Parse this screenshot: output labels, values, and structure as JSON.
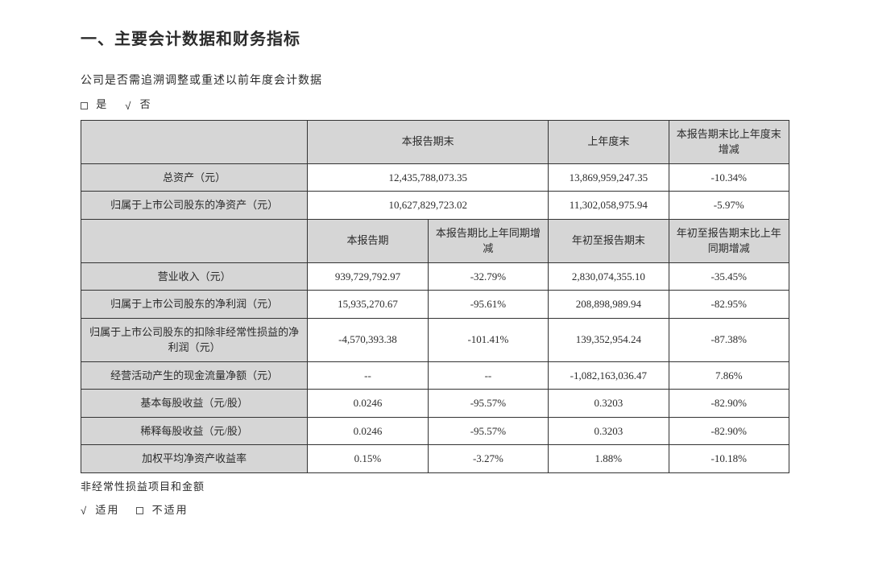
{
  "section_title": "一、主要会计数据和财务指标",
  "question_line": "公司是否需追溯调整或重述以前年度会计数据",
  "choice_box_label_yes": "是",
  "choice_tick_label_no": "否",
  "colwidths_pct": [
    32,
    17,
    17,
    17,
    17
  ],
  "header_row1_cells": [
    {
      "text": "",
      "colspan": 1,
      "is_th": true
    },
    {
      "text": "本报告期末",
      "colspan": 2,
      "is_th": true
    },
    {
      "text": "上年度末",
      "colspan": 1,
      "is_th": true
    },
    {
      "text": "本报告期末比上年度末增减",
      "colspan": 1,
      "is_th": true
    }
  ],
  "rows_block1": [
    {
      "label": "总资产（元）",
      "cells": [
        {
          "text": "12,435,788,073.35",
          "colspan": 2
        },
        {
          "text": "13,869,959,247.35",
          "colspan": 1
        },
        {
          "text": "-10.34%",
          "colspan": 1
        }
      ]
    },
    {
      "label": "归属于上市公司股东的净资产（元）",
      "cells": [
        {
          "text": "10,627,829,723.02",
          "colspan": 2
        },
        {
          "text": "11,302,058,975.94",
          "colspan": 1
        },
        {
          "text": "-5.97%",
          "colspan": 1
        }
      ]
    }
  ],
  "header_row2_cells": [
    {
      "text": "",
      "is_th": true
    },
    {
      "text": "本报告期",
      "is_th": true
    },
    {
      "text": "本报告期比上年同期增减",
      "is_th": true
    },
    {
      "text": "年初至报告期末",
      "is_th": true
    },
    {
      "text": "年初至报告期末比上年同期增减",
      "is_th": true
    }
  ],
  "rows_block2": [
    {
      "label": "营业收入（元）",
      "cells": [
        "939,729,792.97",
        "-32.79%",
        "2,830,074,355.10",
        "-35.45%"
      ]
    },
    {
      "label": "归属于上市公司股东的净利润（元）",
      "cells": [
        "15,935,270.67",
        "-95.61%",
        "208,898,989.94",
        "-82.95%"
      ]
    },
    {
      "label": "归属于上市公司股东的扣除非经常性损益的净利润（元）",
      "cells": [
        "-4,570,393.38",
        "-101.41%",
        "139,352,954.24",
        "-87.38%"
      ]
    },
    {
      "label": "经营活动产生的现金流量净额（元）",
      "cells": [
        "--",
        "--",
        "-1,082,163,036.47",
        "7.86%"
      ]
    },
    {
      "label": "基本每股收益（元/股）",
      "cells": [
        "0.0246",
        "-95.57%",
        "0.3203",
        "-82.90%"
      ]
    },
    {
      "label": "稀释每股收益（元/股）",
      "cells": [
        "0.0246",
        "-95.57%",
        "0.3203",
        "-82.90%"
      ]
    },
    {
      "label": "加权平均净资产收益率",
      "cells": [
        "0.15%",
        "-3.27%",
        "1.88%",
        "-10.18%"
      ]
    }
  ],
  "footnote1": "非经常性损益项目和金额",
  "footnote2_applicable": "适用",
  "footnote2_not_applicable": "不适用",
  "colors": {
    "header_bg": "#d6d6d6",
    "border": "#333333",
    "text": "#2b2b2b",
    "page_bg": "#ffffff"
  },
  "fonts": {
    "title_size_pt": 20,
    "body_size_pt": 14,
    "table_size_pt": 13,
    "family": "SimSun / Songti"
  }
}
